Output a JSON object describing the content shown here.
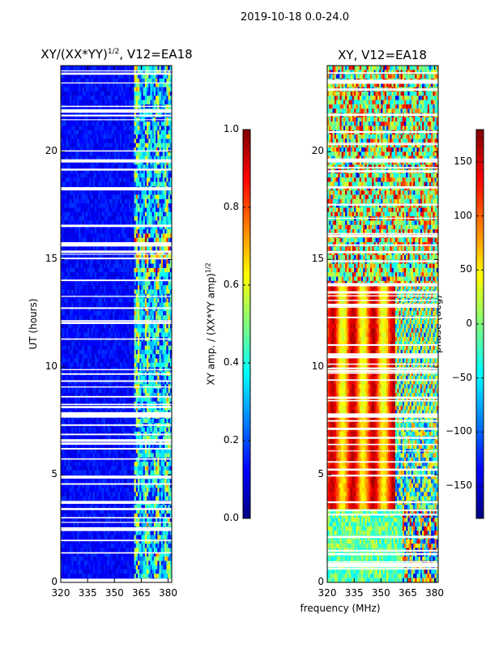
{
  "figure_title": "2019-10-18 0.0-24.0",
  "chart_data": [
    {
      "type": "heatmap",
      "title": "XY/(XX*YY)^{1/2}, V12=EA18",
      "title_base": "XY/(XX*YY)",
      "title_sup": "1/2",
      "title_tail": ", V12=EA18",
      "xlabel": "",
      "ylabel": "UT (hours)",
      "xlim": [
        320,
        382
      ],
      "ylim": [
        0,
        24
      ],
      "xticks": [
        320,
        335,
        350,
        365,
        380
      ],
      "yticks": [
        0,
        5,
        10,
        15,
        20
      ],
      "colorbar": {
        "label": "XY amp. / (XX*YY amp)^{1/2}",
        "label_base": "XY amp. / (XX*YY amp)",
        "label_sup": "1/2",
        "range": [
          0.0,
          1.0
        ],
        "ticks": [
          "0.0",
          "0.2",
          "0.4",
          "0.6",
          "0.8",
          "1.0"
        ],
        "colormap": "jet"
      },
      "active_band_mhz": [
        361,
        382
      ],
      "flagged_hours": [
        [
          7.65,
          7.85
        ],
        [
          19.5,
          19.65
        ],
        [
          15.6,
          15.8
        ]
      ]
    },
    {
      "type": "heatmap",
      "title": "XY, V12=EA18",
      "xlabel": "frequency (MHz)",
      "ylabel": "",
      "xlim": [
        320,
        382
      ],
      "ylim": [
        0,
        24
      ],
      "xticks": [
        320,
        335,
        350,
        365,
        380
      ],
      "yticks": [
        0,
        5,
        10,
        15,
        20
      ],
      "colorbar": {
        "label": "phase (deg)",
        "range": [
          -180,
          180
        ],
        "ticks": [
          "150",
          "100",
          "50",
          "0",
          "−50",
          "−100",
          "−150"
        ],
        "colormap": "jet"
      },
      "flagged_hours": [
        [
          7.65,
          7.85
        ],
        [
          19.5,
          19.65
        ],
        [
          13.75,
          13.9
        ]
      ]
    }
  ]
}
